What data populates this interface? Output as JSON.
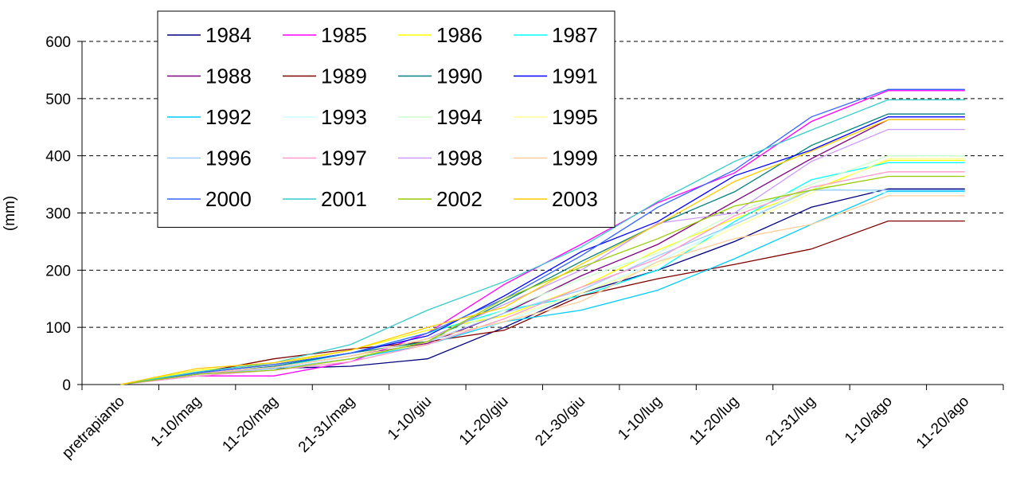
{
  "chart_data": {
    "type": "line",
    "y_label": "(mm)",
    "categories": [
      "pretrapianto",
      "1-10/mag",
      "11-20/mag",
      "21-31/mag",
      "1-10/giu",
      "11-20/giu",
      "21-30/giu",
      "1-10/lug",
      "11-20/lug",
      "21-31/lug",
      "1-10/ago",
      "11-20/ago"
    ],
    "ylim": [
      0,
      600
    ],
    "yticks": [
      0,
      100,
      200,
      300,
      400,
      500,
      600
    ],
    "grid": true,
    "legend": "top-left",
    "series": [
      {
        "name": "1984",
        "color": "#000080",
        "values": [
          0,
          20,
          28,
          32,
          45,
          100,
          160,
          200,
          250,
          310,
          342,
          342
        ]
      },
      {
        "name": "1985",
        "color": "#ff00ff",
        "values": [
          0,
          15,
          15,
          40,
          90,
          175,
          245,
          318,
          370,
          460,
          514,
          514
        ]
      },
      {
        "name": "1986",
        "color": "#ffff00",
        "values": [
          0,
          25,
          35,
          60,
          95,
          120,
          170,
          235,
          290,
          340,
          392,
          392
        ]
      },
      {
        "name": "1987",
        "color": "#00ffff",
        "values": [
          0,
          20,
          30,
          55,
          90,
          130,
          155,
          200,
          285,
          358,
          388,
          388
        ]
      },
      {
        "name": "1988",
        "color": "#800080",
        "values": [
          0,
          18,
          30,
          50,
          72,
          125,
          190,
          245,
          320,
          395,
          463,
          463
        ]
      },
      {
        "name": "1989",
        "color": "#800000",
        "values": [
          0,
          20,
          45,
          62,
          75,
          95,
          155,
          185,
          210,
          237,
          286,
          286
        ]
      },
      {
        "name": "1990",
        "color": "#008080",
        "values": [
          0,
          18,
          32,
          55,
          75,
          145,
          215,
          280,
          337,
          418,
          473,
          473
        ]
      },
      {
        "name": "1991",
        "color": "#0000ff",
        "values": [
          0,
          20,
          35,
          55,
          85,
          155,
          232,
          285,
          365,
          410,
          468,
          468
        ]
      },
      {
        "name": "1992",
        "color": "#00ccff",
        "values": [
          0,
          18,
          28,
          45,
          70,
          110,
          130,
          165,
          220,
          280,
          338,
          338
        ]
      },
      {
        "name": "1993",
        "color": "#ccffff",
        "values": [
          0,
          15,
          25,
          45,
          75,
          110,
          160,
          215,
          280,
          345,
          335,
          335
        ]
      },
      {
        "name": "1994",
        "color": "#ccffcc",
        "values": [
          0,
          18,
          30,
          50,
          80,
          130,
          185,
          230,
          300,
          350,
          400,
          400
        ]
      },
      {
        "name": "1995",
        "color": "#ffff99",
        "values": [
          0,
          20,
          30,
          50,
          70,
          115,
          160,
          210,
          275,
          335,
          395,
          395
        ]
      },
      {
        "name": "1996",
        "color": "#99ccff",
        "values": [
          0,
          18,
          28,
          45,
          75,
          125,
          165,
          225,
          280,
          340,
          340,
          340
        ]
      },
      {
        "name": "1997",
        "color": "#ff99cc",
        "values": [
          0,
          15,
          25,
          40,
          70,
          115,
          170,
          220,
          295,
          345,
          372,
          372
        ]
      },
      {
        "name": "1998",
        "color": "#cc99ff",
        "values": [
          0,
          18,
          30,
          50,
          80,
          140,
          200,
          282,
          300,
          390,
          446,
          446
        ]
      },
      {
        "name": "1999",
        "color": "#ffcc99",
        "values": [
          0,
          20,
          30,
          50,
          80,
          110,
          145,
          215,
          255,
          280,
          330,
          330
        ]
      },
      {
        "name": "2000",
        "color": "#3366ff",
        "values": [
          0,
          20,
          35,
          55,
          90,
          150,
          225,
          310,
          375,
          468,
          516,
          516
        ]
      },
      {
        "name": "2001",
        "color": "#33cccc",
        "values": [
          0,
          22,
          38,
          70,
          130,
          180,
          240,
          320,
          390,
          445,
          498,
          498
        ]
      },
      {
        "name": "2002",
        "color": "#99cc00",
        "values": [
          0,
          18,
          25,
          45,
          75,
          150,
          205,
          255,
          312,
          340,
          364,
          364
        ]
      },
      {
        "name": "2003",
        "color": "#ffcc00",
        "values": [
          0,
          28,
          38,
          60,
          100,
          135,
          210,
          280,
          355,
          408,
          463,
          463
        ]
      }
    ]
  }
}
